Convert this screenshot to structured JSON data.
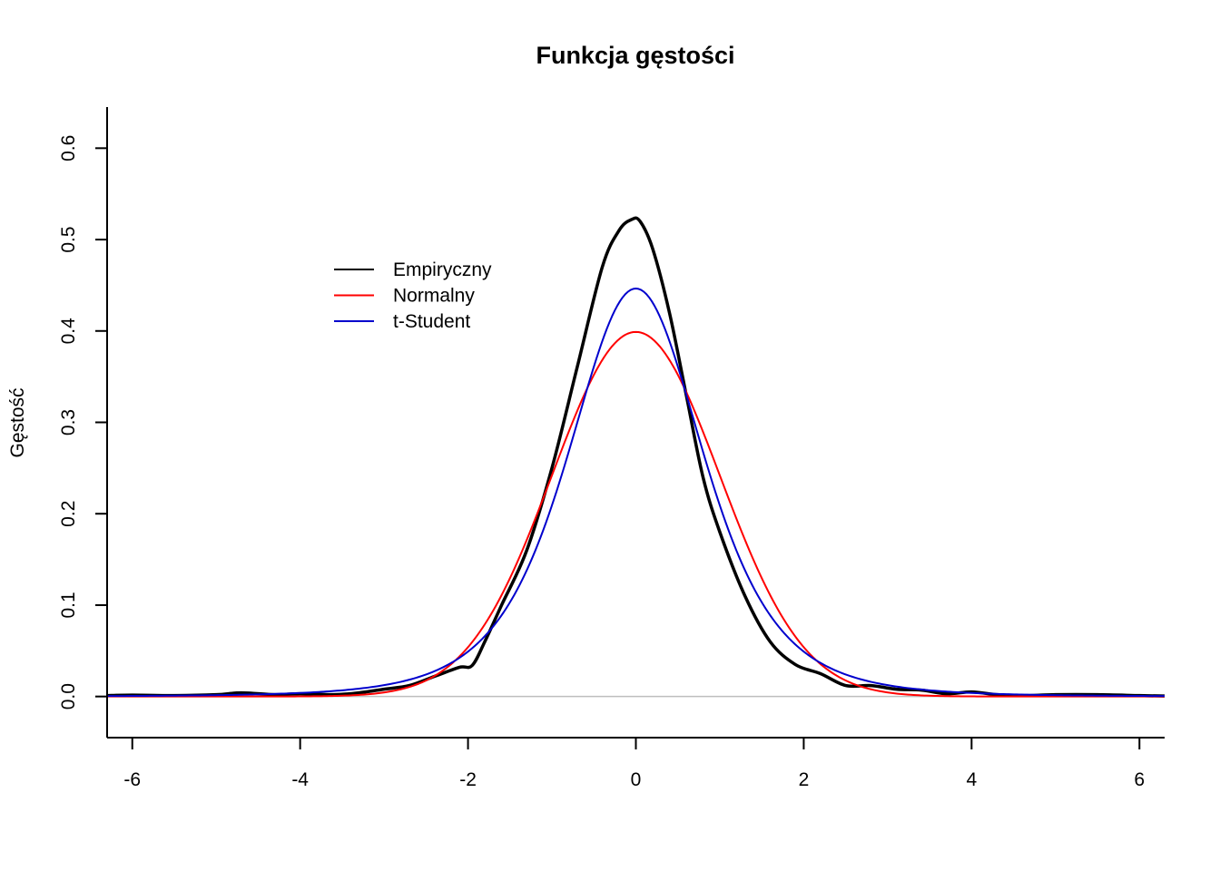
{
  "chart_data": {
    "type": "line",
    "title": "Funkcja gęstości",
    "xlabel": "",
    "ylabel": "Gęstość",
    "xlim": [
      -6.3,
      6.3
    ],
    "ylim": [
      -0.045,
      0.645
    ],
    "x_ticks": [
      -6,
      -4,
      -2,
      0,
      2,
      4,
      6
    ],
    "x_tick_labels": [
      "-6",
      "-4",
      "-2",
      "0",
      "2",
      "4",
      "6"
    ],
    "y_ticks": [
      0.0,
      0.1,
      0.2,
      0.3,
      0.4,
      0.5,
      0.6
    ],
    "y_tick_labels": [
      "0.0",
      "0.1",
      "0.2",
      "0.3",
      "0.4",
      "0.5",
      "0.6"
    ],
    "grid": false,
    "reference_line": {
      "y": 0,
      "color": "#bebebe"
    },
    "legend": {
      "position": "top-left"
    },
    "series": [
      {
        "name": "Empiryczny",
        "color": "#000000",
        "x": [
          -6.3,
          -6.0,
          -5.5,
          -5.0,
          -4.7,
          -4.3,
          -4.0,
          -3.6,
          -3.3,
          -3.0,
          -2.7,
          -2.4,
          -2.1,
          -1.95,
          -1.8,
          -1.6,
          -1.3,
          -1.0,
          -0.7,
          -0.4,
          -0.2,
          -0.05,
          0.05,
          0.2,
          0.4,
          0.6,
          0.8,
          1.0,
          1.3,
          1.6,
          1.9,
          2.2,
          2.5,
          2.8,
          3.1,
          3.4,
          3.7,
          4.0,
          4.3,
          4.6,
          5.0,
          5.5,
          6.0,
          6.3
        ],
        "y": [
          0.001,
          0.0015,
          0.001,
          0.002,
          0.004,
          0.002,
          0.003,
          0.002,
          0.004,
          0.008,
          0.012,
          0.022,
          0.032,
          0.034,
          0.06,
          0.1,
          0.16,
          0.25,
          0.36,
          0.47,
          0.51,
          0.522,
          0.52,
          0.49,
          0.42,
          0.33,
          0.24,
          0.18,
          0.11,
          0.06,
          0.035,
          0.025,
          0.012,
          0.012,
          0.008,
          0.007,
          0.003,
          0.005,
          0.002,
          0.001,
          0.002,
          0.002,
          0.001,
          0.0005
        ]
      },
      {
        "name": "Normalny",
        "color": "#ff0000",
        "function": "normal",
        "params": {
          "mean": 0,
          "sd": 1
        }
      },
      {
        "name": "t-Student",
        "color": "#0000cd",
        "function": "student_t",
        "params": {
          "location": 0,
          "scale": 0.84,
          "df": 4
        }
      }
    ]
  }
}
